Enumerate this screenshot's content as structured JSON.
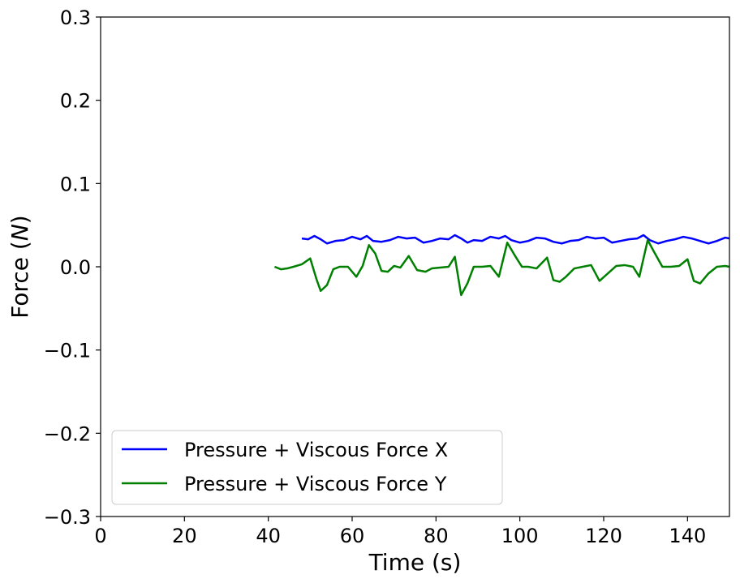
{
  "chart_data": {
    "type": "line",
    "xlabel": "Time (s)",
    "ylabel_prefix": "Force (",
    "ylabel_unit": "N",
    "ylabel_suffix": ")",
    "xlim": [
      0,
      150
    ],
    "ylim": [
      -0.3,
      0.3
    ],
    "xticks": [
      0,
      20,
      40,
      60,
      80,
      100,
      120,
      140
    ],
    "xtick_labels": [
      "0",
      "20",
      "40",
      "60",
      "80",
      "100",
      "120",
      "140"
    ],
    "yticks": [
      -0.3,
      -0.2,
      -0.1,
      0.0,
      0.1,
      0.2,
      0.3
    ],
    "ytick_labels": [
      "−0.3",
      "−0.2",
      "−0.1",
      "0.0",
      "0.1",
      "0.2",
      "0.3"
    ],
    "grid": false,
    "legend_position": "lower-left",
    "series": [
      {
        "name": "Pressure + Viscous Force X",
        "color": "#0000ff",
        "x": [
          48,
          49.5,
          51,
          52.5,
          54,
          56,
          58,
          60,
          62,
          63.5,
          65,
          67,
          69,
          71,
          73,
          75,
          77,
          79,
          81,
          83,
          84.5,
          86,
          87.5,
          89,
          91,
          93,
          95,
          96.5,
          98,
          100,
          102,
          104,
          106,
          108,
          110,
          112,
          114,
          116,
          118,
          120,
          122,
          124,
          126,
          128,
          129.5,
          131,
          133,
          135,
          137,
          139,
          141,
          143,
          145,
          147,
          149,
          150
        ],
        "y": [
          0.034,
          0.033,
          0.037,
          0.033,
          0.028,
          0.031,
          0.032,
          0.036,
          0.033,
          0.037,
          0.031,
          0.03,
          0.032,
          0.036,
          0.034,
          0.035,
          0.029,
          0.031,
          0.034,
          0.033,
          0.038,
          0.034,
          0.029,
          0.032,
          0.031,
          0.036,
          0.034,
          0.037,
          0.032,
          0.029,
          0.031,
          0.035,
          0.034,
          0.03,
          0.028,
          0.031,
          0.032,
          0.036,
          0.034,
          0.035,
          0.029,
          0.031,
          0.033,
          0.034,
          0.038,
          0.032,
          0.028,
          0.031,
          0.033,
          0.036,
          0.034,
          0.031,
          0.028,
          0.031,
          0.035,
          0.034
        ]
      },
      {
        "name": "Pressure + Viscous Force Y",
        "color": "#008000",
        "x": [
          41.5,
          43,
          44.5,
          46,
          48,
          50,
          51.5,
          52.5,
          54,
          55.5,
          57,
          59,
          61,
          62.5,
          64,
          65.5,
          67,
          68.5,
          70,
          71.5,
          73.5,
          75.5,
          77.5,
          79,
          81,
          83,
          84.5,
          86,
          87.5,
          89,
          91,
          93,
          95,
          97,
          99,
          100.5,
          102,
          104,
          106.5,
          108,
          109.5,
          111,
          113,
          115,
          117,
          119,
          121,
          123,
          125,
          127,
          128.5,
          130.5,
          132,
          134,
          136,
          138,
          140,
          141.5,
          143,
          145,
          147,
          149,
          150
        ],
        "y": [
          0.0,
          -0.003,
          -0.002,
          0.0,
          0.003,
          0.01,
          -0.015,
          -0.029,
          -0.022,
          -0.003,
          0.0,
          0.0,
          -0.012,
          0.001,
          0.026,
          0.016,
          -0.005,
          -0.006,
          0.001,
          -0.001,
          0.013,
          -0.004,
          -0.006,
          -0.002,
          -0.001,
          0.0,
          0.012,
          -0.034,
          -0.02,
          0.0,
          0.0,
          0.001,
          -0.012,
          0.029,
          0.012,
          0.0,
          0.0,
          -0.002,
          0.011,
          -0.016,
          -0.018,
          -0.012,
          -0.002,
          0.0,
          0.002,
          -0.017,
          -0.008,
          0.001,
          0.002,
          0.0,
          -0.012,
          0.032,
          0.018,
          0.0,
          0.0,
          0.001,
          0.009,
          -0.017,
          -0.02,
          -0.008,
          0.0,
          0.001,
          0.0
        ]
      }
    ]
  }
}
